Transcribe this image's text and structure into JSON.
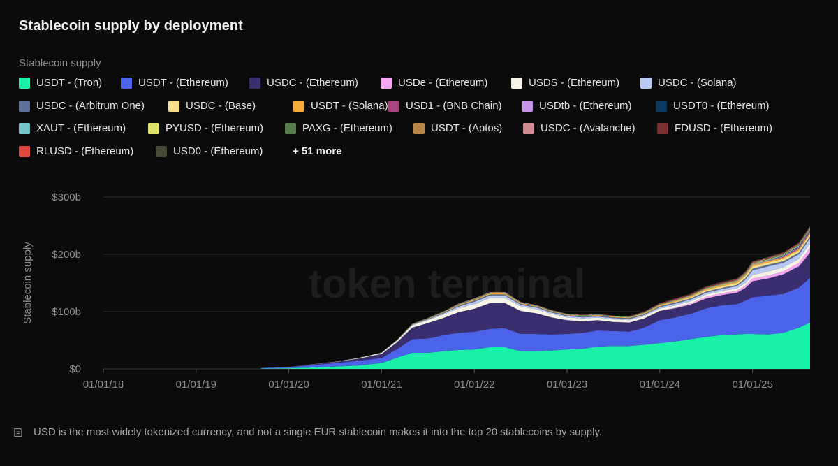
{
  "title": "Stablecoin supply by deployment",
  "legend_title": "Stablecoin supply",
  "legend": [
    {
      "label": "USDT - (Tron)",
      "color": "#19f0a8"
    },
    {
      "label": "USDT - (Ethereum)",
      "color": "#4a63e8"
    },
    {
      "label": "USDC - (Ethereum)",
      "color": "#3b2e6e"
    },
    {
      "label": "USDe - (Ethereum)",
      "color": "#f6a6f2"
    },
    {
      "label": "USDS - (Ethereum)",
      "color": "#f5f3e6"
    },
    {
      "label": "USDC - (Solana)",
      "color": "#b9c9f4"
    },
    {
      "label": "USDC - (Arbitrum One)",
      "color": "#5b6f98"
    },
    {
      "label": "USDC - (Base)",
      "color": "#f6e08a"
    },
    {
      "label": "USDT - (Solana)",
      "color": "#f9ad3c"
    },
    {
      "label": "USD1 - (BNB Chain)",
      "color": "#a8457f"
    },
    {
      "label": "USDtb - (Ethereum)",
      "color": "#c895e8"
    },
    {
      "label": "USDT0 - (Ethereum)",
      "color": "#0d3a61"
    },
    {
      "label": "XAUT - (Ethereum)",
      "color": "#74c6c8"
    },
    {
      "label": "PYUSD - (Ethereum)",
      "color": "#dfe36c"
    },
    {
      "label": "PAXG - (Ethereum)",
      "color": "#5a7e4e"
    },
    {
      "label": "USDT - (Aptos)",
      "color": "#b88a4a"
    },
    {
      "label": "USDC - (Avalanche)",
      "color": "#cf8b8f"
    },
    {
      "label": "FDUSD - (Ethereum)",
      "color": "#7a3030"
    },
    {
      "label": "RLUSD - (Ethereum)",
      "color": "#e2483d"
    },
    {
      "label": "USD0 - (Ethereum)",
      "color": "#474a36"
    }
  ],
  "more_label": "+ 51 more",
  "watermark": "token terminal",
  "footnote": "USD is the most widely tokenized currency, and not a single EUR stablecoin makes it into the top 20 stablecoins by supply.",
  "chart_data": {
    "type": "area",
    "stacked": true,
    "ylabel": "Stablecoin supply",
    "ylim": [
      0,
      300
    ],
    "yticks": [
      {
        "value": 0,
        "label": "$0"
      },
      {
        "value": 100,
        "label": "$100b"
      },
      {
        "value": 200,
        "label": "$200b"
      },
      {
        "value": 300,
        "label": "$300b"
      }
    ],
    "xlim": [
      2018.0,
      2025.62
    ],
    "xticks": [
      {
        "value": 2018,
        "label": "01/01/18"
      },
      {
        "value": 2019,
        "label": "01/01/19"
      },
      {
        "value": 2020,
        "label": "01/01/20"
      },
      {
        "value": 2021,
        "label": "01/01/21"
      },
      {
        "value": 2022,
        "label": "01/01/22"
      },
      {
        "value": 2023,
        "label": "01/01/23"
      },
      {
        "value": 2024,
        "label": "01/01/24"
      },
      {
        "value": 2025,
        "label": "01/01/25"
      }
    ],
    "x": [
      2019.7,
      2020.0,
      2020.25,
      2020.5,
      2020.75,
      2021.0,
      2021.17,
      2021.33,
      2021.5,
      2021.67,
      2021.83,
      2022.0,
      2022.17,
      2022.33,
      2022.5,
      2022.67,
      2022.83,
      2023.0,
      2023.17,
      2023.33,
      2023.5,
      2023.67,
      2023.83,
      2024.0,
      2024.17,
      2024.33,
      2024.5,
      2024.67,
      2024.83,
      2024.92,
      2025.0,
      2025.17,
      2025.33,
      2025.5,
      2025.62
    ],
    "series": [
      {
        "name": "USDT - (Tron)",
        "color": "#19f0a8",
        "values": [
          0.5,
          1,
          2.5,
          4,
          6,
          10,
          20,
          28,
          28,
          31,
          33,
          34,
          38,
          38,
          31,
          31,
          32,
          34,
          35,
          39,
          40,
          40,
          42,
          45,
          48,
          52,
          56,
          59,
          60,
          61,
          61,
          60,
          63,
          72,
          81
        ]
      },
      {
        "name": "USDT - (Ethereum)",
        "color": "#4a63e8",
        "values": [
          1.0,
          2,
          4,
          6,
          8,
          9,
          15,
          24,
          25,
          28,
          30,
          31,
          32,
          33,
          30,
          30,
          28,
          27,
          28,
          28,
          26,
          25,
          30,
          40,
          42,
          44,
          50,
          52,
          53,
          58,
          64,
          68,
          68,
          70,
          78
        ]
      },
      {
        "name": "USDC - (Ethereum)",
        "color": "#3b2e6e",
        "values": [
          0.3,
          0.6,
          1.2,
          2,
          4,
          7,
          12,
          20,
          27,
          30,
          36,
          40,
          45,
          44,
          40,
          36,
          30,
          24,
          20,
          18,
          16,
          16,
          16,
          16,
          16,
          16,
          17,
          18,
          20,
          22,
          28,
          30,
          34,
          37,
          44
        ]
      },
      {
        "name": "USDe - (Ethereum)",
        "color": "#f6a6f2",
        "values": [
          0,
          0,
          0,
          0,
          0,
          0,
          0,
          0,
          0,
          0,
          0,
          0,
          0,
          0,
          0,
          0,
          0,
          0,
          0,
          0,
          0,
          0,
          0,
          0.3,
          1,
          2,
          3,
          3,
          3.5,
          4,
          5,
          5,
          5,
          6,
          9
        ]
      },
      {
        "name": "USDS - (Ethereum)",
        "color": "#f5f3e6",
        "values": [
          0,
          0.1,
          0.3,
          0.5,
          1,
          2,
          3,
          4,
          5,
          6,
          7,
          8,
          9,
          9,
          8,
          7,
          6,
          5,
          5,
          4.5,
          4.5,
          4,
          4,
          4,
          4,
          4,
          4,
          4,
          4,
          4.5,
          6,
          7,
          7,
          7,
          7
        ]
      },
      {
        "name": "USDC - (Solana)",
        "color": "#b9c9f4",
        "values": [
          0,
          0,
          0,
          0,
          0,
          0.2,
          0.5,
          1,
          1.5,
          2,
          3,
          4,
          4,
          4,
          3,
          3,
          2.5,
          2,
          2,
          2,
          2,
          2,
          2,
          2.5,
          3,
          3,
          3,
          3.5,
          4,
          6,
          8,
          9,
          8,
          8,
          9
        ]
      },
      {
        "name": "USDC - (Arbitrum One)",
        "color": "#5b6f98",
        "values": [
          0,
          0,
          0,
          0,
          0,
          0,
          0,
          0.3,
          0.5,
          1,
          1.5,
          2,
          2,
          2,
          1.5,
          1.5,
          1.5,
          1.5,
          1.5,
          1.5,
          1.5,
          1.5,
          1.5,
          1.5,
          2,
          2,
          2,
          2,
          2,
          2.5,
          3,
          3,
          3,
          3,
          3
        ]
      },
      {
        "name": "USDC - (Base)",
        "color": "#f6e08a",
        "values": [
          0,
          0,
          0,
          0,
          0,
          0,
          0,
          0,
          0,
          0,
          0,
          0,
          0,
          0,
          0,
          0,
          0,
          0,
          0,
          0,
          0,
          0.2,
          0.5,
          0.8,
          1.2,
          2,
          2.5,
          3,
          3.5,
          3.5,
          4,
          4,
          4,
          4,
          4
        ]
      },
      {
        "name": "USDT - (Solana)",
        "color": "#f9ad3c",
        "values": [
          0,
          0,
          0,
          0,
          0,
          0,
          0.3,
          0.5,
          0.8,
          1,
          1.5,
          1.8,
          2,
          2,
          1.5,
          1.3,
          1.2,
          1.2,
          1.2,
          1.2,
          1.2,
          1.2,
          1.3,
          1.5,
          1.7,
          1.8,
          2,
          2,
          2,
          2,
          2.2,
          2.3,
          2.3,
          2.3,
          2.3
        ]
      },
      {
        "name": "USD1 - (BNB Chain)",
        "color": "#a8457f",
        "values": [
          0,
          0,
          0,
          0,
          0,
          0,
          0,
          0,
          0,
          0,
          0,
          0,
          0,
          0,
          0,
          0,
          0,
          0,
          0,
          0,
          0,
          0,
          0,
          0,
          0,
          0,
          0,
          0,
          0,
          0,
          0,
          0,
          1,
          2,
          2
        ]
      },
      {
        "name": "USDtb - (Ethereum)",
        "color": "#c895e8",
        "values": [
          0,
          0,
          0,
          0,
          0,
          0,
          0,
          0,
          0,
          0,
          0,
          0,
          0,
          0,
          0,
          0,
          0,
          0,
          0,
          0,
          0,
          0,
          0,
          0,
          0,
          0,
          0,
          0,
          0.3,
          0.5,
          1,
          1,
          1.2,
          1.3,
          1.4
        ]
      },
      {
        "name": "USDT0 - (Ethereum)",
        "color": "#0d3a61",
        "values": [
          0,
          0,
          0,
          0,
          0,
          0,
          0,
          0,
          0,
          0,
          0,
          0,
          0,
          0,
          0,
          0,
          0,
          0,
          0,
          0,
          0,
          0,
          0,
          0,
          0,
          0,
          0,
          0,
          0,
          0,
          0,
          0.3,
          0.8,
          1.2,
          1.5
        ]
      },
      {
        "name": "XAUT - (Ethereum)",
        "color": "#74c6c8",
        "values": [
          0,
          0,
          0,
          0,
          0,
          0.1,
          0.2,
          0.3,
          0.4,
          0.5,
          0.6,
          0.6,
          0.6,
          0.6,
          0.5,
          0.5,
          0.5,
          0.5,
          0.5,
          0.5,
          0.5,
          0.5,
          0.5,
          0.5,
          0.6,
          0.6,
          0.6,
          0.7,
          0.8,
          0.8,
          0.8,
          0.9,
          1,
          1.2,
          1.4
        ]
      },
      {
        "name": "PYUSD - (Ethereum)",
        "color": "#dfe36c",
        "values": [
          0,
          0,
          0,
          0,
          0,
          0,
          0,
          0,
          0,
          0,
          0,
          0,
          0,
          0,
          0,
          0,
          0,
          0,
          0,
          0,
          0,
          0.2,
          0.3,
          0.4,
          0.5,
          0.5,
          0.6,
          0.7,
          0.8,
          0.8,
          0.8,
          0.8,
          0.8,
          0.9,
          1
        ]
      },
      {
        "name": "PAXG - (Ethereum)",
        "color": "#5a7e4e",
        "values": [
          0,
          0,
          0.1,
          0.2,
          0.3,
          0.4,
          0.5,
          0.6,
          0.6,
          0.6,
          0.6,
          0.6,
          0.6,
          0.6,
          0.5,
          0.5,
          0.5,
          0.5,
          0.5,
          0.5,
          0.5,
          0.5,
          0.5,
          0.5,
          0.5,
          0.5,
          0.6,
          0.6,
          0.6,
          0.6,
          0.7,
          0.8,
          0.9,
          1,
          1.1
        ]
      },
      {
        "name": "USDT - (Aptos)",
        "color": "#b88a4a",
        "values": [
          0,
          0,
          0,
          0,
          0,
          0,
          0,
          0,
          0,
          0,
          0,
          0,
          0,
          0,
          0,
          0,
          0,
          0,
          0,
          0,
          0,
          0,
          0,
          0,
          0,
          0,
          0,
          0.2,
          0.4,
          0.5,
          0.6,
          0.7,
          0.8,
          0.9,
          1
        ]
      },
      {
        "name": "USDC - (Avalanche)",
        "color": "#cf8b8f",
        "values": [
          0,
          0,
          0,
          0,
          0,
          0,
          0,
          0.1,
          0.2,
          0.5,
          0.8,
          1,
          1,
          1,
          0.8,
          0.7,
          0.6,
          0.5,
          0.5,
          0.5,
          0.5,
          0.5,
          0.5,
          0.5,
          0.6,
          0.6,
          0.6,
          0.7,
          0.8,
          0.8,
          0.8,
          0.8,
          0.8,
          0.8,
          0.8
        ]
      },
      {
        "name": "FDUSD - (Ethereum)",
        "color": "#7a3030",
        "values": [
          0,
          0,
          0,
          0,
          0,
          0,
          0,
          0,
          0,
          0,
          0,
          0,
          0,
          0,
          0,
          0,
          0,
          0,
          0,
          0,
          0.2,
          0.5,
          1,
          1.5,
          2,
          2,
          2,
          2,
          1.5,
          1.5,
          1.5,
          1.2,
          1,
          1,
          1
        ]
      },
      {
        "name": "RLUSD - (Ethereum)",
        "color": "#e2483d",
        "values": [
          0,
          0,
          0,
          0,
          0,
          0,
          0,
          0,
          0,
          0,
          0,
          0,
          0,
          0,
          0,
          0,
          0,
          0,
          0,
          0,
          0,
          0,
          0,
          0,
          0,
          0,
          0,
          0,
          0,
          0.1,
          0.1,
          0.2,
          0.3,
          0.4,
          0.5
        ]
      },
      {
        "name": "USD0 - (Ethereum)",
        "color": "#474a36",
        "values": [
          0,
          0,
          0,
          0,
          0,
          0,
          0,
          0,
          0,
          0,
          0,
          0,
          0,
          0,
          0,
          0,
          0,
          0,
          0,
          0,
          0,
          0,
          0,
          0,
          0.1,
          0.3,
          0.5,
          0.6,
          0.6,
          0.6,
          0.6,
          0.6,
          0.6,
          0.6,
          0.6
        ]
      }
    ]
  }
}
